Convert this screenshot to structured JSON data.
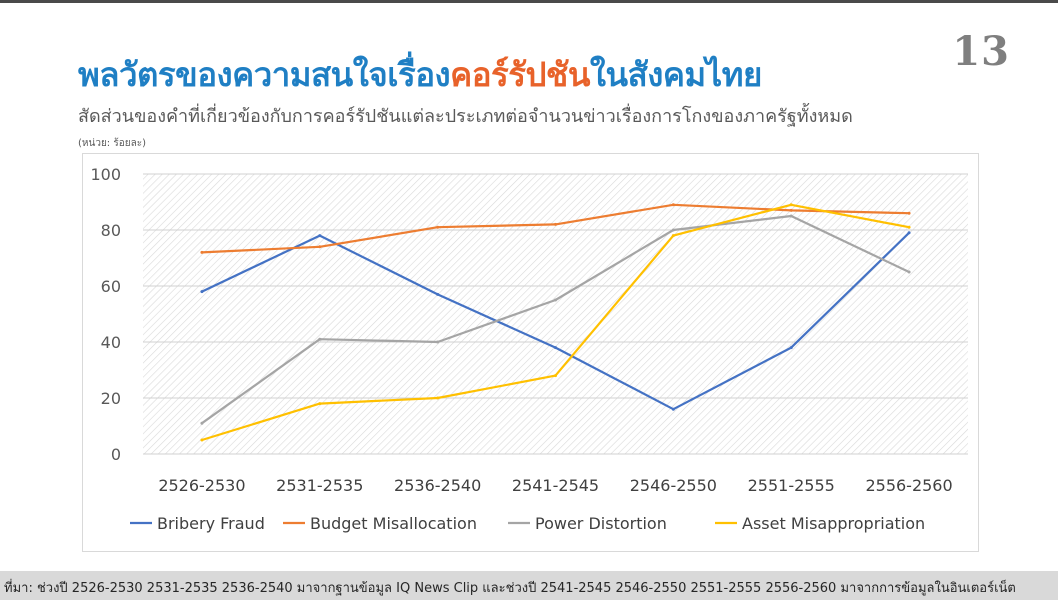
{
  "page": {
    "number": "13",
    "title_part1": "พลวัตรของความสนใจเรื่อง",
    "title_highlight": "คอร์รัปชัน",
    "title_part2": "ในสังคมไทย",
    "subtitle": "สัดส่วนของคำที่เกี่ยวข้องกับการคอร์รัปชันแต่ละประเภทต่อจำนวนข่าวเรื่องการโกงของภาครัฐทั้งหมด",
    "unit": "(หน่วย: ร้อยละ)",
    "source": "ที่มา: ช่วงปี 2526-2530 2531-2535 2536-2540 มาจากฐานข้อมูล IQ News Clip และช่วงปี 2541-2545 2546-2550 2551-2555 2556-2560 มาจากการข้อมูลในอินเตอร์เน็ต"
  },
  "colors": {
    "title": "#1f7fc4",
    "highlight": "#e8622a",
    "bribery": "#4472c4",
    "budget": "#ed7d31",
    "power": "#a5a5a5",
    "asset": "#ffc000"
  },
  "chart_data": {
    "type": "line",
    "x": [
      "2526-2530",
      "2531-2535",
      "2536-2540",
      "2541-2545",
      "2546-2550",
      "2551-2555",
      "2556-2560"
    ],
    "ylim": [
      0,
      100
    ],
    "yticks": [
      0,
      20,
      40,
      60,
      80,
      100
    ],
    "grid": true,
    "legend": "bottom",
    "series": [
      {
        "name": "Bribery Fraud",
        "color": "#4472c4",
        "values": [
          58,
          78,
          57,
          38,
          16,
          38,
          79
        ]
      },
      {
        "name": "Budget Misallocation",
        "color": "#ed7d31",
        "values": [
          72,
          74,
          81,
          82,
          89,
          87,
          86
        ]
      },
      {
        "name": "Power Distortion",
        "color": "#a5a5a5",
        "values": [
          11,
          41,
          40,
          55,
          80,
          85,
          65
        ]
      },
      {
        "name": "Asset Misappropriation",
        "color": "#ffc000",
        "values": [
          5,
          18,
          20,
          28,
          78,
          89,
          81
        ]
      }
    ]
  }
}
